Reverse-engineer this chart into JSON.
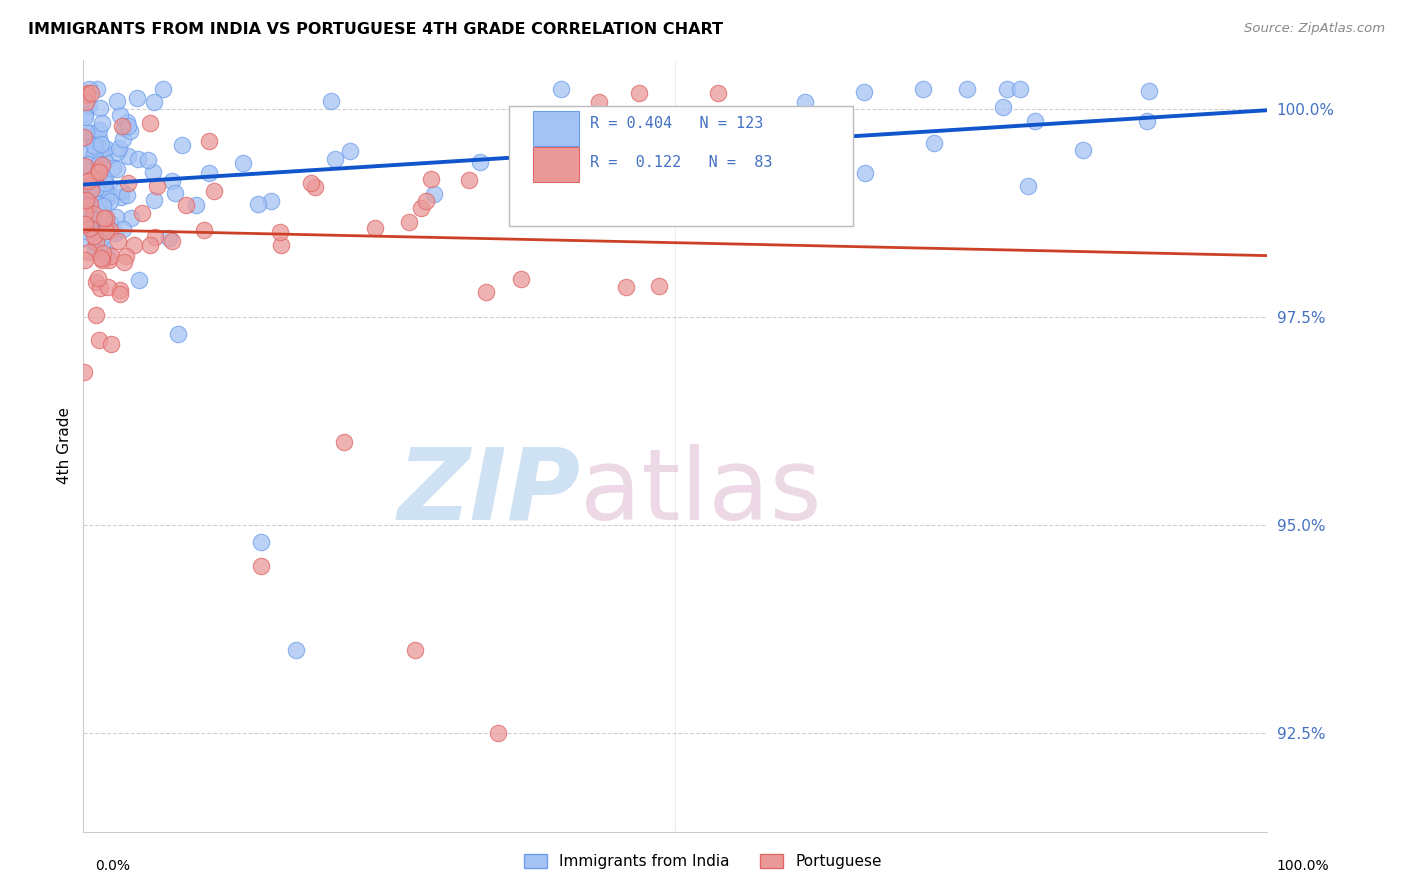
{
  "title": "IMMIGRANTS FROM INDIA VS PORTUGUESE 4TH GRADE CORRELATION CHART",
  "source": "Source: ZipAtlas.com",
  "ylabel": "4th Grade",
  "y_ticks": [
    92.5,
    95.0,
    97.5,
    100.0
  ],
  "y_tick_labels": [
    "92.5%",
    "95.0%",
    "97.5%",
    "100.0%"
  ],
  "x_min": 0.0,
  "x_max": 100.0,
  "y_min": 91.3,
  "y_max": 100.6,
  "legend_india_label": "Immigrants from India",
  "legend_portuguese_label": "Portuguese",
  "india_R": 0.404,
  "india_N": 123,
  "portuguese_R": 0.122,
  "portuguese_N": 83,
  "india_color": "#a4c2f4",
  "portuguese_color": "#ea9999",
  "india_edge_color": "#6d9eeb",
  "portuguese_edge_color": "#e06666",
  "india_line_color": "#1155cc",
  "portuguese_line_color": "#cc4125",
  "watermark_zip": "ZIP",
  "watermark_atlas": "atlas",
  "watermark_color": "#cfe2f3",
  "legend_box_color": "#cccccc"
}
